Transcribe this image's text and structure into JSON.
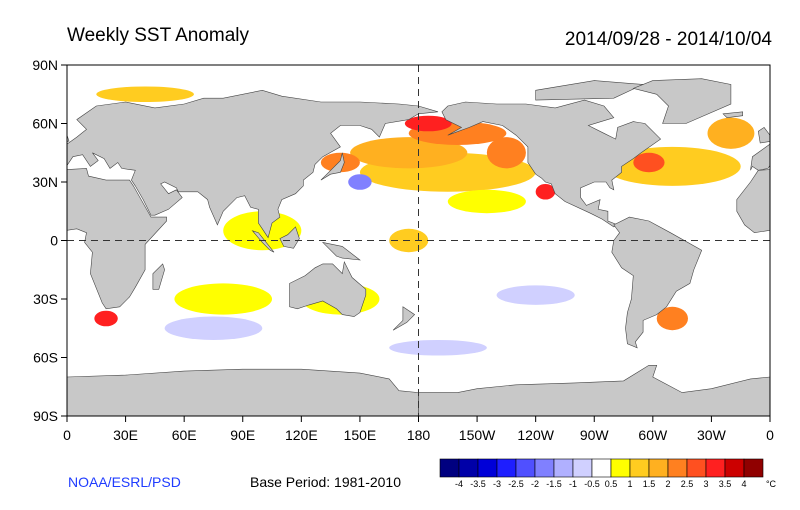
{
  "header": {
    "title": "Weekly SST Anomaly",
    "period": "2014/09/28 - 2014/10/04"
  },
  "footer": {
    "credit": "NOAA/ESRL/PSD",
    "base_period": "Base Period: 1981-2010"
  },
  "axes": {
    "x_ticks": [
      "0",
      "30E",
      "60E",
      "90E",
      "120E",
      "150E",
      "180",
      "150W",
      "120W",
      "90W",
      "60W",
      "30W",
      "0"
    ],
    "y_ticks": [
      "90N",
      "60N",
      "30N",
      "0",
      "30S",
      "60S",
      "90S"
    ]
  },
  "colorbar": {
    "unit": "°C",
    "labels": [
      "-4",
      "-3.5",
      "-3",
      "-2.5",
      "-2",
      "-1.5",
      "-1",
      "-0.5",
      "0.5",
      "1",
      "1.5",
      "2",
      "2.5",
      "3",
      "3.5",
      "4"
    ],
    "colors": [
      "#000080",
      "#0000a8",
      "#0000d8",
      "#1e1eff",
      "#5050ff",
      "#8080ff",
      "#b0b0ff",
      "#d0d0ff",
      "#ffffff",
      "#ffff00",
      "#ffcc20",
      "#ffb020",
      "#ff8020",
      "#ff5020",
      "#ff2020",
      "#cc0000",
      "#900000"
    ]
  },
  "map_colors": {
    "land": "#c8c8c8",
    "coast": "#444444",
    "ocean": "#ffffff"
  },
  "anomaly_regions": [
    {
      "lon": 195,
      "lat": 35,
      "rlon": 45,
      "rlat": 10,
      "level": 10
    },
    {
      "lon": 175,
      "lat": 45,
      "rlon": 30,
      "rlat": 8,
      "level": 11
    },
    {
      "lon": 200,
      "lat": 55,
      "rlon": 25,
      "rlat": 6,
      "level": 12
    },
    {
      "lon": 185,
      "lat": 60,
      "rlon": 12,
      "rlat": 4,
      "level": 14
    },
    {
      "lon": 225,
      "lat": 45,
      "rlon": 10,
      "rlat": 8,
      "level": 12
    },
    {
      "lon": 245,
      "lat": 25,
      "rlon": 5,
      "rlat": 4,
      "level": 14
    },
    {
      "lon": 215,
      "lat": 20,
      "rlon": 20,
      "rlat": 6,
      "level": 9
    },
    {
      "lon": 140,
      "lat": 40,
      "rlon": 10,
      "rlat": 5,
      "level": 12
    },
    {
      "lon": 150,
      "lat": 30,
      "rlon": 6,
      "rlat": 4,
      "level": 5
    },
    {
      "lon": 310,
      "lat": 38,
      "rlon": 35,
      "rlat": 10,
      "level": 10
    },
    {
      "lon": 298,
      "lat": 40,
      "rlon": 8,
      "rlat": 5,
      "level": 13
    },
    {
      "lon": 340,
      "lat": 55,
      "rlon": 12,
      "rlat": 8,
      "level": 11
    },
    {
      "lon": 100,
      "lat": 5,
      "rlon": 20,
      "rlat": 10,
      "level": 9
    },
    {
      "lon": 175,
      "lat": 0,
      "rlon": 10,
      "rlat": 6,
      "level": 10
    },
    {
      "lon": 80,
      "lat": -30,
      "rlon": 25,
      "rlat": 8,
      "level": 9
    },
    {
      "lon": 140,
      "lat": -30,
      "rlon": 20,
      "rlat": 8,
      "level": 9
    },
    {
      "lon": 20,
      "lat": -40,
      "rlon": 6,
      "rlat": 4,
      "level": 14
    },
    {
      "lon": 310,
      "lat": -40,
      "rlon": 8,
      "rlat": 6,
      "level": 12
    },
    {
      "lon": 75,
      "lat": -45,
      "rlon": 25,
      "rlat": 6,
      "level": 7
    },
    {
      "lon": 190,
      "lat": -55,
      "rlon": 25,
      "rlat": 4,
      "level": 7
    },
    {
      "lon": 240,
      "lat": -28,
      "rlon": 20,
      "rlat": 5,
      "level": 7
    },
    {
      "lon": 40,
      "lat": 75,
      "rlon": 25,
      "rlat": 4,
      "level": 10
    },
    {
      "lon": 140,
      "lat": -20,
      "rlon": 0,
      "rlat": 0,
      "level": 8
    }
  ]
}
